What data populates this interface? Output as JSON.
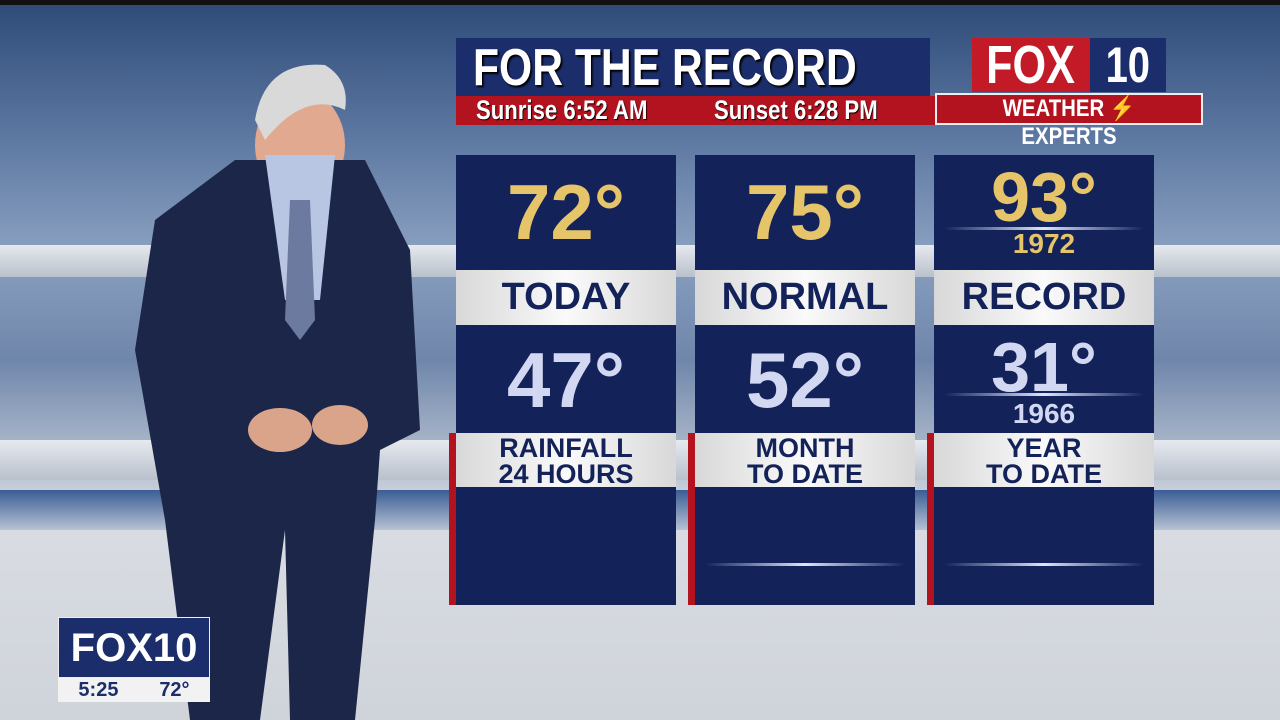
{
  "header": {
    "title": "FOR THE RECORD",
    "sunrise": "Sunrise 6:52 AM",
    "sunset": "Sunset 6:28 PM"
  },
  "logo": {
    "fox": "FOX",
    "ten": "10",
    "tagline_left": "WEATHER",
    "tagline_right": "EXPERTS",
    "bolt_icon": "lightning-bolt"
  },
  "columns": [
    {
      "high": "72°",
      "label": "TODAY",
      "low": "47°",
      "precip_label_1": "RAINFALL",
      "precip_label_2": "24 HOURS"
    },
    {
      "high": "75°",
      "label": "NORMAL",
      "low": "52°",
      "precip_label_1": "MONTH",
      "precip_label_2": "TO DATE"
    },
    {
      "high": "93°",
      "high_year": "1972",
      "label": "RECORD",
      "low": "31°",
      "low_year": "1966",
      "precip_label_1": "YEAR",
      "precip_label_2": "TO DATE"
    }
  ],
  "bug": {
    "station": "FOX10",
    "time": "5:25",
    "temp": "72°"
  },
  "colors": {
    "navy": "#14225a",
    "red": "#b3131f",
    "gold": "#e6c56a"
  }
}
